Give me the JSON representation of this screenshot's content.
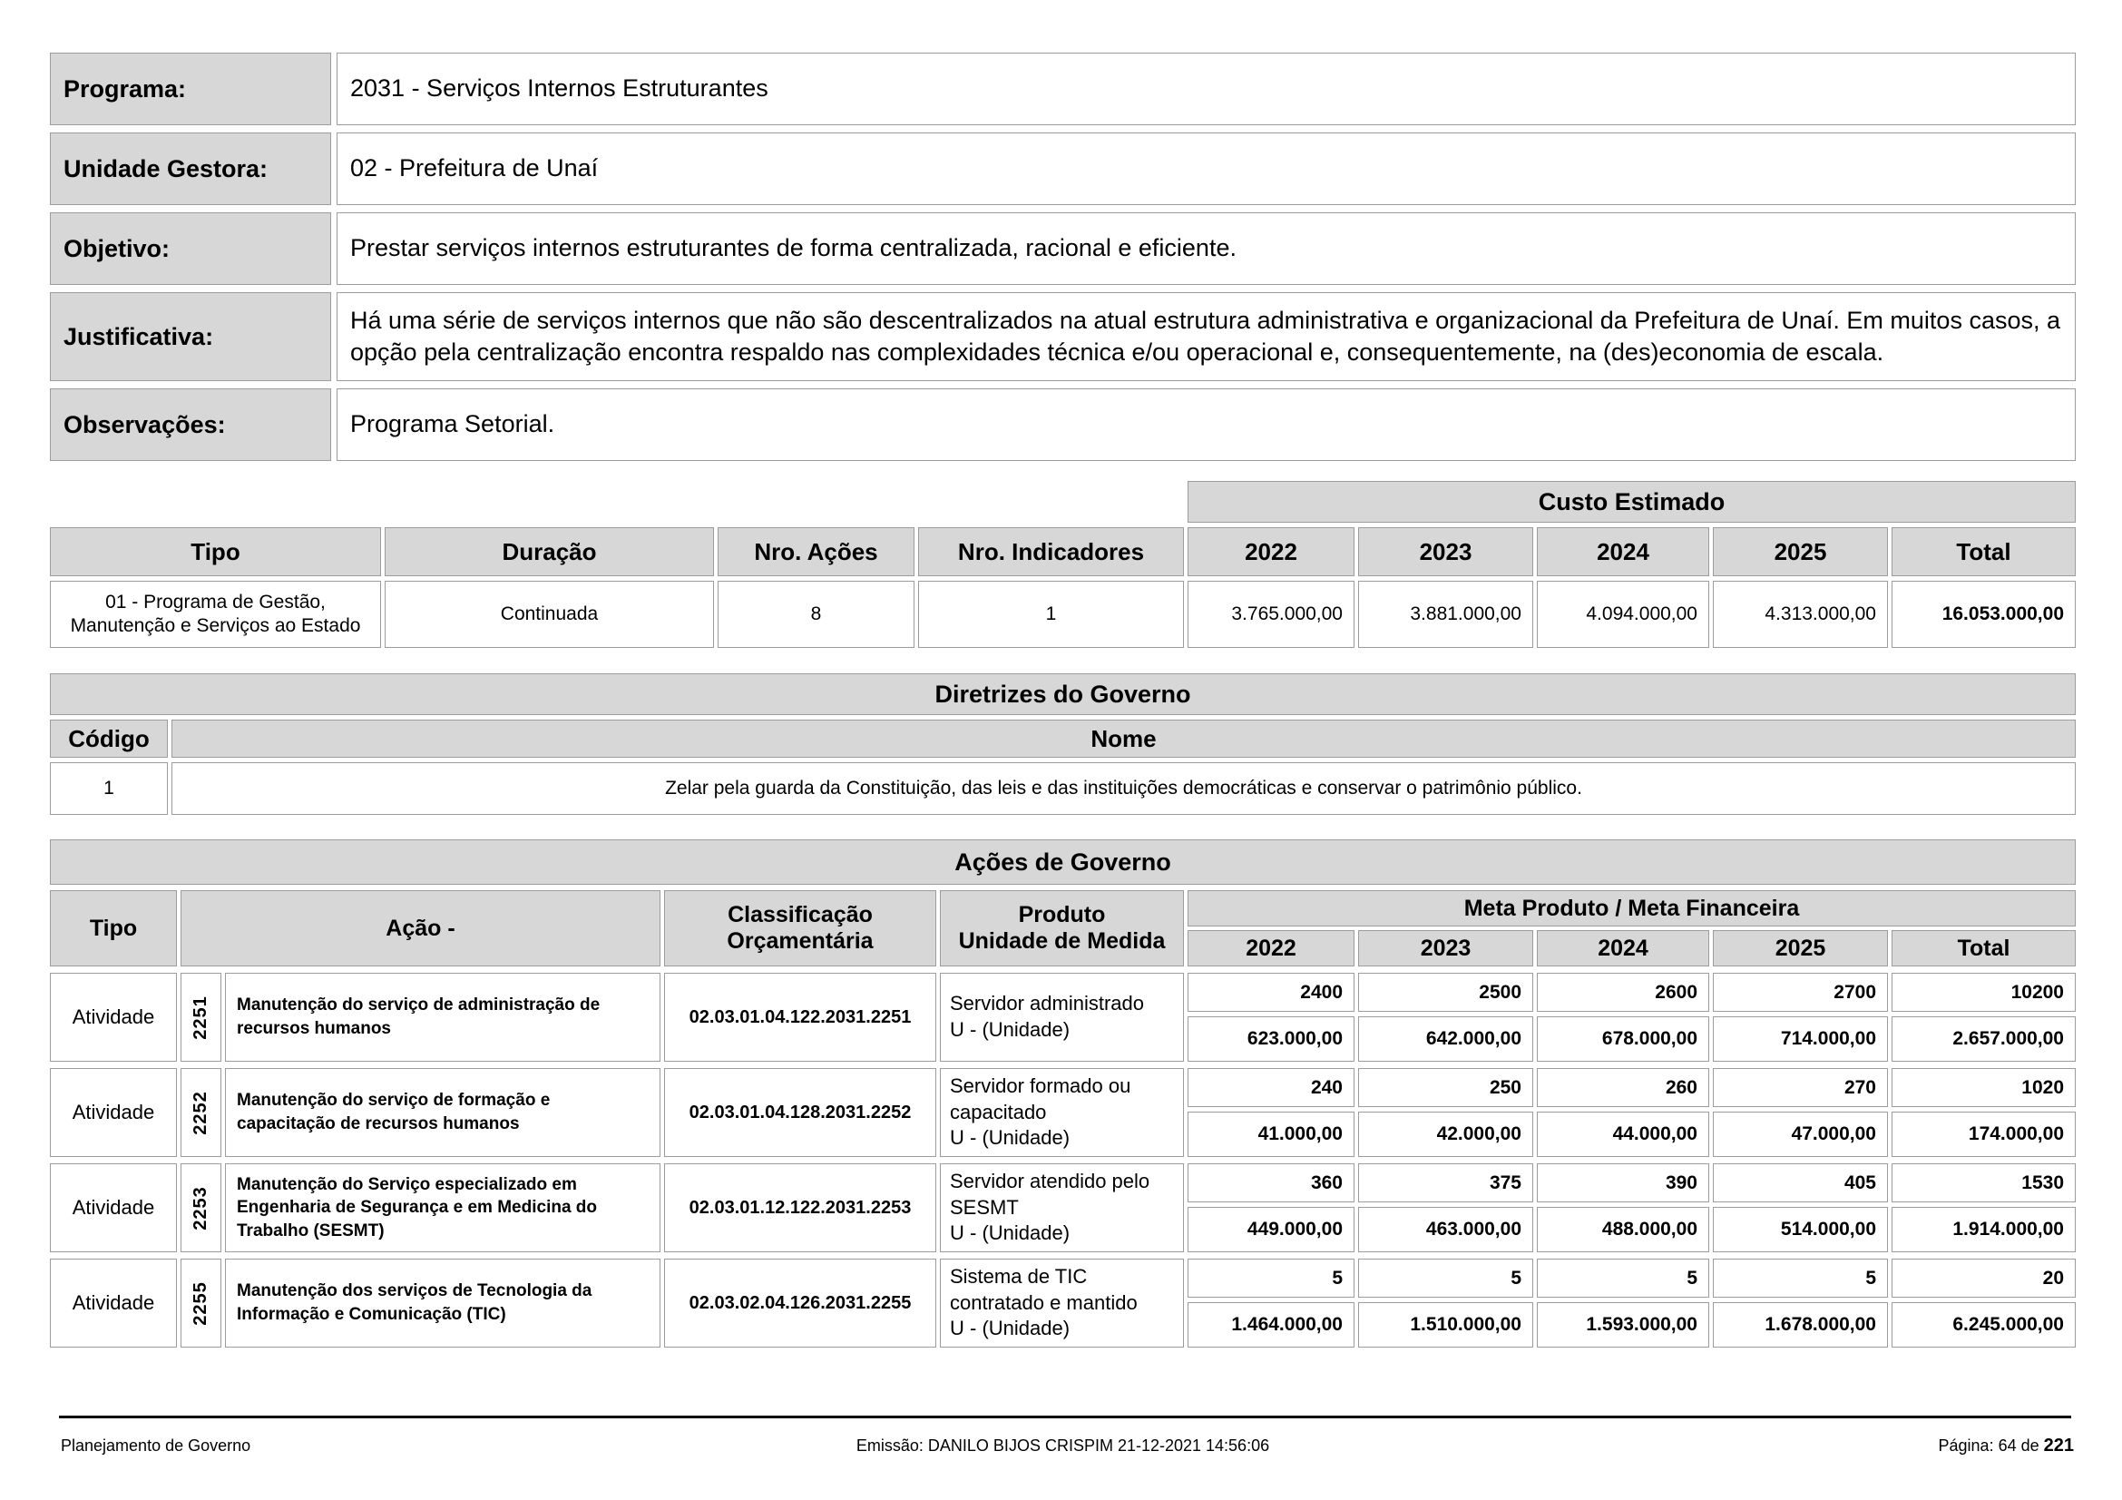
{
  "info": {
    "rows": [
      {
        "label": "Programa:",
        "value": "2031 - Serviços Internos Estruturantes"
      },
      {
        "label": "Unidade Gestora:",
        "value": "02 - Prefeitura de Unaí"
      },
      {
        "label": "Objetivo:",
        "value": "Prestar serviços internos estruturantes de forma centralizada, racional e eficiente."
      },
      {
        "label": "Justificativa:",
        "value": "Há uma série de serviços internos que não são descentralizados na atual estrutura administrativa e organizacional da Prefeitura de Unaí. Em muitos casos, a opção pela centralização encontra respaldo nas complexidades técnica e/ou operacional e, consequentemente, na (des)economia de escala."
      },
      {
        "label": "Observações:",
        "value": "Programa Setorial."
      }
    ]
  },
  "custo": {
    "banner": "Custo Estimado",
    "col_tipo": "Tipo",
    "col_duracao": "Duração",
    "col_acoes": "Nro. Ações",
    "col_indicadores": "Nro. Indicadores",
    "years": [
      "2022",
      "2023",
      "2024",
      "2025"
    ],
    "col_total": "Total",
    "row": {
      "tipo": "01 - Programa de Gestão, Manutenção e Serviços ao Estado",
      "duracao": "Continuada",
      "nro_acoes": "8",
      "nro_indicadores": "1",
      "values": [
        "3.765.000,00",
        "3.881.000,00",
        "4.094.000,00",
        "4.313.000,00"
      ],
      "total": "16.053.000,00"
    }
  },
  "diretrizes": {
    "banner": "Diretrizes do Governo",
    "col_codigo": "Código",
    "col_nome": "Nome",
    "row": {
      "codigo": "1",
      "nome": "Zelar pela guarda da Constituição, das leis e das instituições democráticas e conservar o patrimônio público."
    }
  },
  "acoes": {
    "banner": "Ações de Governo",
    "col_tipo": "Tipo",
    "col_acao": "Ação -",
    "col_classificacao": "Classificação Orçamentária",
    "col_produto_line1": "Produto",
    "col_produto_line2": "Unidade de Medida",
    "meta_banner": "Meta Produto / Meta Financeira",
    "years": [
      "2022",
      "2023",
      "2024",
      "2025"
    ],
    "col_total": "Total",
    "rows": [
      {
        "tipo": "Atividade",
        "numero": "2251",
        "nome": "Manutenção do serviço de administração de recursos humanos",
        "classificacao": "02.03.01.04.122.2031.2251",
        "produto": "Servidor administrado",
        "unidade": "U - (Unidade)",
        "metas": [
          "2400",
          "2500",
          "2600",
          "2700",
          "10200"
        ],
        "financeiro": [
          "623.000,00",
          "642.000,00",
          "678.000,00",
          "714.000,00",
          "2.657.000,00"
        ]
      },
      {
        "tipo": "Atividade",
        "numero": "2252",
        "nome": "Manutenção do serviço de formação e capacitação de recursos humanos",
        "classificacao": "02.03.01.04.128.2031.2252",
        "produto": "Servidor formado ou capacitado",
        "unidade": "U - (Unidade)",
        "metas": [
          "240",
          "250",
          "260",
          "270",
          "1020"
        ],
        "financeiro": [
          "41.000,00",
          "42.000,00",
          "44.000,00",
          "47.000,00",
          "174.000,00"
        ]
      },
      {
        "tipo": "Atividade",
        "numero": "2253",
        "nome": "Manutenção do Serviço especializado em Engenharia de Segurança e em Medicina do Trabalho (SESMT)",
        "classificacao": "02.03.01.12.122.2031.2253",
        "produto": "Servidor atendido pelo SESMT",
        "unidade": "U - (Unidade)",
        "metas": [
          "360",
          "375",
          "390",
          "405",
          "1530"
        ],
        "financeiro": [
          "449.000,00",
          "463.000,00",
          "488.000,00",
          "514.000,00",
          "1.914.000,00"
        ]
      },
      {
        "tipo": "Atividade",
        "numero": "2255",
        "nome": "Manutenção dos serviços de Tecnologia da Informação e Comunicação (TIC)",
        "classificacao": "02.03.02.04.126.2031.2255",
        "produto": "Sistema de TIC contratado e mantido",
        "unidade": "U - (Unidade)",
        "metas": [
          "5",
          "5",
          "5",
          "5",
          "20"
        ],
        "financeiro": [
          "1.464.000,00",
          "1.510.000,00",
          "1.593.000,00",
          "1.678.000,00",
          "6.245.000,00"
        ]
      }
    ]
  },
  "footer": {
    "left": "Planejamento de Governo",
    "center": "Emissão: DANILO BIJOS CRISPIM 21-12-2021 14:56:06",
    "right_label": "Página: 64 de",
    "right_total": "221"
  },
  "colors": {
    "header_gray": "#d7d7d7",
    "border": "#9c9c9c",
    "text": "#000000"
  }
}
